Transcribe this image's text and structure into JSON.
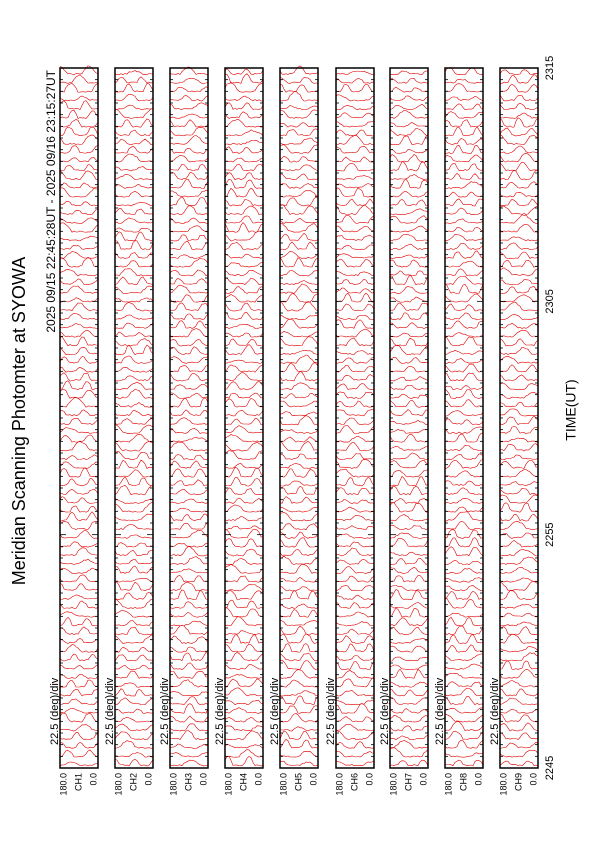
{
  "chart_data": {
    "type": "scan-panels",
    "title": "Meridian Scanning Photomter at SYOWA",
    "subtitle": "2025 09/15 22:45:28UT - 2025 09/16 23:15:27UT",
    "x_label": "TIME(UT)",
    "xticks": [
      "2245",
      "2255",
      "2305",
      "2315"
    ],
    "color": "#e00000",
    "panels": [
      {
        "channel": "CH1",
        "scale_label": "22.5 (deg)/div",
        "ytop": "180.0",
        "ybottom": "0.0"
      },
      {
        "channel": "CH2",
        "scale_label": "22.5 (deg)/div",
        "ytop": "180.0",
        "ybottom": "0.0"
      },
      {
        "channel": "CH3",
        "scale_label": "22.5 (deg)/div",
        "ytop": "180.0",
        "ybottom": "0.0"
      },
      {
        "channel": "CH4",
        "scale_label": "22.5 (deg)/div",
        "ytop": "180.0",
        "ybottom": "0.0"
      },
      {
        "channel": "CH5",
        "scale_label": "22.5 (deg)/div",
        "ytop": "180.0",
        "ybottom": "0.0"
      },
      {
        "channel": "CH6",
        "scale_label": "22.5 (deg)/div",
        "ytop": "180.0",
        "ybottom": "0.0"
      },
      {
        "channel": "CH7",
        "scale_label": "22.5 (deg)/div",
        "ytop": "180.0",
        "ybottom": "0.0"
      },
      {
        "channel": "CH8",
        "scale_label": "22.5 (deg)/div",
        "ytop": "180.0",
        "ybottom": "0.0"
      },
      {
        "channel": "CH9",
        "scale_label": "22.5 (deg)/div",
        "ytop": "180.0",
        "ybottom": "0.0"
      }
    ]
  }
}
